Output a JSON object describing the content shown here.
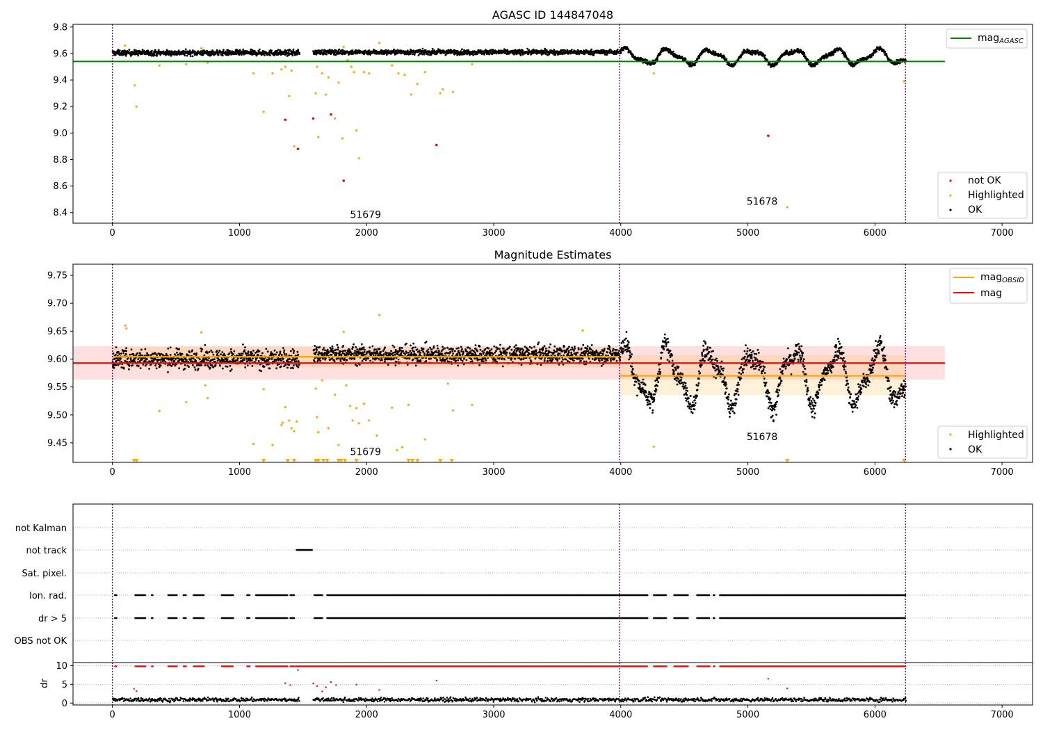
{
  "chart_data": [
    {
      "type": "scatter",
      "title": "AGASC ID 144847048",
      "xlabel": "",
      "ylabel": "",
      "xlim": [
        -310,
        7240
      ],
      "ylim": [
        8.32,
        9.82
      ],
      "xticks": [
        0,
        1000,
        2000,
        3000,
        4000,
        5000,
        6000,
        7000
      ],
      "yticks": [
        8.4,
        8.6,
        8.8,
        9.0,
        9.2,
        9.4,
        9.6,
        9.8
      ],
      "ytick_labels": [
        "8.4",
        "8.6",
        "8.8",
        "9.0",
        "9.2",
        "9.4",
        "9.6",
        "9.8"
      ],
      "grid": false,
      "legend_top": {
        "position": "top-right",
        "entries": [
          {
            "label": "mag",
            "subscript": "AGASC",
            "color": "#008000",
            "kind": "line"
          }
        ]
      },
      "legend_bottom": {
        "position": "bottom-right",
        "entries": [
          {
            "label": "not OK",
            "color": "#ff0000",
            "kind": "dot"
          },
          {
            "label": "Highlighted",
            "color": "#ffa500",
            "kind": "dot"
          },
          {
            "label": "OK",
            "color": "#000000",
            "kind": "dot"
          }
        ]
      },
      "hlines": [
        {
          "name": "mag_AGASC",
          "y": 9.54,
          "x": [
            -310,
            6550
          ],
          "color": "#008000"
        }
      ],
      "vlines": [
        {
          "x": 0,
          "color": "#800080"
        },
        {
          "x": 3990,
          "color": "#800080"
        },
        {
          "x": 6240,
          "color": "#800080"
        }
      ],
      "annotations": [
        {
          "text": "51679",
          "x": 1870,
          "y": 8.36
        },
        {
          "text": "51678",
          "x": 4990,
          "y": 8.46
        }
      ],
      "ok_segments": [
        {
          "x": [
            0,
            1470
          ],
          "base": 9.605,
          "noise": 0.02,
          "wave_amp": 0,
          "wave_period": 1
        },
        {
          "x": [
            1580,
            3990
          ],
          "base": 9.61,
          "noise": 0.018,
          "wave_amp": 0,
          "wave_period": 1
        },
        {
          "x": [
            3990,
            6240
          ],
          "base": 9.575,
          "noise": 0.015,
          "wave_amp": 0.05,
          "wave_period": 330
        }
      ],
      "highlighted": [
        [
          100,
          9.66
        ],
        [
          175,
          9.36
        ],
        [
          190,
          9.2
        ],
        [
          370,
          9.51
        ],
        [
          580,
          9.52
        ],
        [
          700,
          9.64
        ],
        [
          750,
          9.53
        ],
        [
          1110,
          9.45
        ],
        [
          1190,
          9.16
        ],
        [
          1260,
          9.45
        ],
        [
          1330,
          9.48
        ],
        [
          1360,
          9.5
        ],
        [
          1390,
          9.28
        ],
        [
          1410,
          9.47
        ],
        [
          1430,
          8.9
        ],
        [
          1600,
          9.3
        ],
        [
          1610,
          9.5
        ],
        [
          1620,
          8.97
        ],
        [
          1650,
          9.45
        ],
        [
          1680,
          9.29
        ],
        [
          1700,
          9.42
        ],
        [
          1750,
          9.11
        ],
        [
          1780,
          9.38
        ],
        [
          1810,
          8.96
        ],
        [
          1820,
          9.65
        ],
        [
          1850,
          9.55
        ],
        [
          1880,
          9.5
        ],
        [
          1900,
          9.46
        ],
        [
          1920,
          9.02
        ],
        [
          1940,
          8.81
        ],
        [
          1980,
          9.46
        ],
        [
          2020,
          9.45
        ],
        [
          2100,
          9.68
        ],
        [
          2200,
          9.51
        ],
        [
          2250,
          9.45
        ],
        [
          2300,
          9.44
        ],
        [
          2350,
          9.29
        ],
        [
          2400,
          9.37
        ],
        [
          2460,
          9.46
        ],
        [
          2580,
          9.3
        ],
        [
          2600,
          9.33
        ],
        [
          2680,
          9.31
        ],
        [
          2830,
          9.52
        ],
        [
          4260,
          9.45
        ],
        [
          5310,
          8.44
        ],
        [
          6230,
          9.39
        ]
      ],
      "not_ok": [
        [
          1360,
          9.1
        ],
        [
          1460,
          8.88
        ],
        [
          1580,
          9.11
        ],
        [
          1720,
          9.14
        ],
        [
          1820,
          8.64
        ],
        [
          2550,
          8.91
        ],
        [
          5160,
          8.98
        ]
      ]
    },
    {
      "type": "scatter",
      "title": "Magnitude Estimates",
      "xlabel": "",
      "ylabel": "",
      "xlim": [
        -310,
        7240
      ],
      "ylim": [
        9.415,
        9.77
      ],
      "xticks": [
        0,
        1000,
        2000,
        3000,
        4000,
        5000,
        6000,
        7000
      ],
      "yticks": [
        9.45,
        9.5,
        9.55,
        9.6,
        9.65,
        9.7,
        9.75
      ],
      "ytick_labels": [
        "9.45",
        "9.50",
        "9.55",
        "9.60",
        "9.65",
        "9.70",
        "9.75"
      ],
      "grid": false,
      "legend_top": {
        "position": "top-right",
        "entries": [
          {
            "label": "mag",
            "subscript": "OBSID",
            "color": "#ffa500",
            "kind": "line"
          },
          {
            "label": "mag",
            "color": "#ff0000",
            "kind": "line"
          }
        ]
      },
      "legend_bottom": {
        "position": "bottom-right",
        "entries": [
          {
            "label": "Highlighted",
            "color": "#ffa500",
            "kind": "dot"
          },
          {
            "label": "OK",
            "color": "#000000",
            "kind": "dot"
          }
        ]
      },
      "mag": {
        "y": 9.593,
        "band": [
          9.563,
          9.623
        ],
        "x": [
          -310,
          6550
        ],
        "color": "#ff0000"
      },
      "mag_obsid": [
        {
          "x": [
            0,
            3990
          ],
          "y": 9.604,
          "band": [
            9.585,
            9.622
          ]
        },
        {
          "x": [
            3990,
            6240
          ],
          "y": 9.57,
          "band": [
            9.535,
            9.607
          ]
        }
      ],
      "vlines": [
        {
          "x": 0,
          "color": "#800080"
        },
        {
          "x": 3990,
          "color": "#800080"
        },
        {
          "x": 6240,
          "color": "#800080"
        }
      ],
      "annotations": [
        {
          "text": "51679",
          "x": 1870,
          "y": 9.428
        },
        {
          "text": "51678",
          "x": 4990,
          "y": 9.455
        }
      ],
      "ok_segments": [
        {
          "x": [
            0,
            1470
          ],
          "base": 9.6,
          "noise": 0.017,
          "wave_amp": 0,
          "wave_period": 1
        },
        {
          "x": [
            1580,
            3990
          ],
          "base": 9.608,
          "noise": 0.016,
          "wave_amp": 0,
          "wave_period": 1
        },
        {
          "x": [
            3990,
            6240
          ],
          "base": 9.57,
          "noise": 0.018,
          "wave_amp": 0.045,
          "wave_period": 330
        }
      ],
      "highlighted": [
        [
          100,
          9.66
        ],
        [
          110,
          9.655
        ],
        [
          370,
          9.507
        ],
        [
          580,
          9.523
        ],
        [
          700,
          9.648
        ],
        [
          730,
          9.553
        ],
        [
          750,
          9.53
        ],
        [
          1110,
          9.448
        ],
        [
          1190,
          9.546
        ],
        [
          1260,
          9.446
        ],
        [
          1330,
          9.482
        ],
        [
          1340,
          9.486
        ],
        [
          1360,
          9.514
        ],
        [
          1390,
          9.49
        ],
        [
          1410,
          9.476
        ],
        [
          1430,
          9.471
        ],
        [
          1450,
          9.488
        ],
        [
          1600,
          9.547
        ],
        [
          1610,
          9.496
        ],
        [
          1620,
          9.469
        ],
        [
          1650,
          9.562
        ],
        [
          1700,
          9.476
        ],
        [
          1750,
          9.536
        ],
        [
          1780,
          9.446
        ],
        [
          1820,
          9.649
        ],
        [
          1840,
          9.553
        ],
        [
          1870,
          9.516
        ],
        [
          1890,
          9.49
        ],
        [
          1920,
          9.512
        ],
        [
          1940,
          9.485
        ],
        [
          1980,
          9.52
        ],
        [
          2020,
          9.49
        ],
        [
          2080,
          9.463
        ],
        [
          2100,
          9.679
        ],
        [
          2200,
          9.513
        ],
        [
          2240,
          9.437
        ],
        [
          2280,
          9.442
        ],
        [
          2330,
          9.518
        ],
        [
          2460,
          9.456
        ],
        [
          2640,
          9.556
        ],
        [
          2680,
          9.508
        ],
        [
          2830,
          9.518
        ],
        [
          3700,
          9.651
        ],
        [
          4260,
          9.443
        ]
      ],
      "offscale_x": [
        170,
        190,
        1190,
        1380,
        1430,
        1600,
        1620,
        1660,
        1690,
        1780,
        1800,
        1830,
        1920,
        2330,
        2360,
        2400,
        2580,
        2670,
        5310,
        6230
      ]
    },
    {
      "type": "scatter",
      "title": "",
      "xlabel": "",
      "ylabel": "",
      "xlim": [
        -310,
        7240
      ],
      "rows": [
        "not Kalman",
        "not track",
        "Sat. pixel.",
        "Ion. rad.",
        "dr > 5",
        "OBS not OK"
      ],
      "flags": {
        "not track": [
          [
            1450,
            1570
          ]
        ],
        "Ion. rad.": [
          [
            20,
            35
          ],
          [
            180,
            260
          ],
          [
            310,
            320
          ],
          [
            440,
            510
          ],
          [
            560,
            580
          ],
          [
            640,
            720
          ],
          [
            860,
            950
          ],
          [
            1060,
            1080
          ],
          [
            1130,
            1380
          ],
          [
            1400,
            1430
          ],
          [
            1590,
            1650
          ],
          [
            1690,
            3990
          ],
          [
            4000,
            4210
          ],
          [
            4260,
            4360
          ],
          [
            4420,
            4530
          ],
          [
            4600,
            4700
          ],
          [
            4730,
            4740
          ],
          [
            4780,
            6240
          ]
        ],
        "dr > 5": [
          [
            20,
            35
          ],
          [
            180,
            260
          ],
          [
            310,
            320
          ],
          [
            440,
            510
          ],
          [
            560,
            580
          ],
          [
            640,
            720
          ],
          [
            860,
            950
          ],
          [
            1060,
            1080
          ],
          [
            1130,
            1380
          ],
          [
            1400,
            1430
          ],
          [
            1590,
            1650
          ],
          [
            1690,
            3990
          ],
          [
            4000,
            4210
          ],
          [
            4260,
            4360
          ],
          [
            4420,
            4530
          ],
          [
            4600,
            4700
          ],
          [
            4730,
            4740
          ],
          [
            4780,
            6240
          ]
        ]
      },
      "vlines": [
        {
          "x": 0,
          "color": "#800080"
        },
        {
          "x": 3990,
          "color": "#800080"
        },
        {
          "x": 6240,
          "color": "#800080"
        }
      ]
    },
    {
      "type": "scatter",
      "title": "",
      "xlabel": "",
      "ylabel": "dr",
      "xlim": [
        -310,
        7240
      ],
      "ylim": [
        -0.5,
        10.8
      ],
      "xticks": [
        0,
        1000,
        2000,
        3000,
        4000,
        5000,
        6000,
        7000
      ],
      "yticks": [
        0,
        5,
        10
      ],
      "ytick_labels": [
        "0",
        "5",
        "10"
      ],
      "grid": true,
      "ok_base": 0.9,
      "ok_noise": 0.5,
      "clipped_y": 9.8,
      "clipped_segments": [
        [
          20,
          35
        ],
        [
          180,
          260
        ],
        [
          310,
          320
        ],
        [
          440,
          510
        ],
        [
          560,
          580
        ],
        [
          640,
          720
        ],
        [
          860,
          950
        ],
        [
          1060,
          1080
        ],
        [
          1130,
          1380
        ],
        [
          1400,
          1430
        ],
        [
          1440,
          3990
        ],
        [
          4000,
          4210
        ],
        [
          4260,
          4360
        ],
        [
          4420,
          4530
        ],
        [
          4600,
          4700
        ],
        [
          4730,
          4740
        ],
        [
          4780,
          6240
        ]
      ],
      "red_points": [
        [
          170,
          3.8
        ],
        [
          190,
          3.2
        ],
        [
          1360,
          5.3
        ],
        [
          1400,
          4.8
        ],
        [
          1460,
          8.8
        ],
        [
          1580,
          5.2
        ],
        [
          1610,
          4.5
        ],
        [
          1650,
          3.1
        ],
        [
          1680,
          4.2
        ],
        [
          1720,
          5.6
        ],
        [
          1760,
          4.8
        ],
        [
          1920,
          4.9
        ],
        [
          2100,
          3.5
        ],
        [
          2550,
          6.0
        ],
        [
          5160,
          6.5
        ],
        [
          5310,
          3.9
        ]
      ],
      "vlines": [
        {
          "x": 0,
          "color": "#800080"
        },
        {
          "x": 3990,
          "color": "#800080"
        },
        {
          "x": 6240,
          "color": "#800080"
        }
      ]
    }
  ]
}
